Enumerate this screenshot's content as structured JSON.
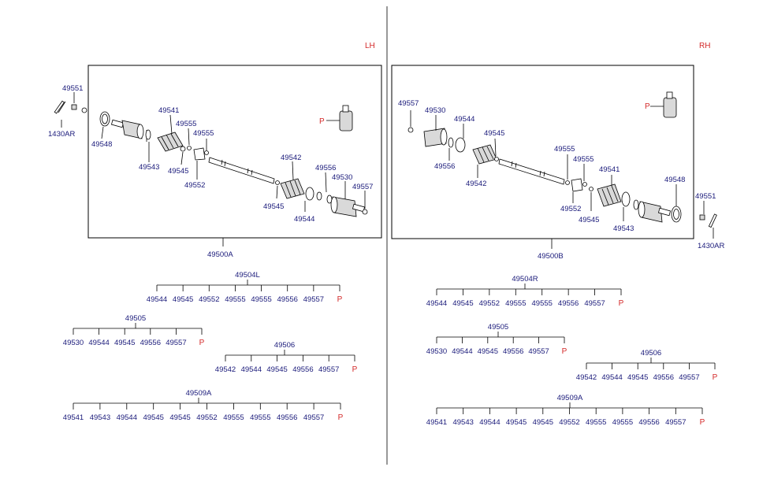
{
  "side_lh": "LH",
  "side_rh": "RH",
  "left": {
    "callouts": {
      "c49551": "49551",
      "c1430ar": "1430AR",
      "c49548": "49548",
      "c49541": "49541",
      "c49555a": "49555",
      "c49555b": "49555",
      "c49543": "49543",
      "c49545a": "49545",
      "c49552": "49552",
      "c49542": "49542",
      "c49556": "49556",
      "c49530": "49530",
      "c49557": "49557",
      "c49545b": "49545",
      "c49544": "49544",
      "p": "P"
    },
    "assembly": "49500A",
    "kits": [
      {
        "name": "49504L",
        "items": [
          "49544",
          "49545",
          "49552",
          "49555",
          "49555",
          "49556",
          "49557",
          "P"
        ]
      },
      {
        "name": "49505",
        "items": [
          "49530",
          "49544",
          "49545",
          "49556",
          "49557",
          "P"
        ]
      },
      {
        "name": "49506",
        "items": [
          "49542",
          "49544",
          "49545",
          "49556",
          "49557",
          "P"
        ]
      },
      {
        "name": "49509A",
        "items": [
          "49541",
          "49543",
          "49544",
          "49545",
          "49545",
          "49552",
          "49555",
          "49555",
          "49556",
          "49557",
          "P"
        ]
      }
    ]
  },
  "right": {
    "callouts": {
      "c49557": "49557",
      "c49530": "49530",
      "c49544": "49544",
      "c49545a": "49545",
      "c49556": "49556",
      "c49542": "49542",
      "c49555a": "49555",
      "c49555b": "49555",
      "c49541": "49541",
      "c49548": "49548",
      "c49552": "49552",
      "c49545b": "49545",
      "c49543": "49543",
      "c49551": "49551",
      "c1430ar": "1430AR",
      "p": "P"
    },
    "assembly": "49500B",
    "kits": [
      {
        "name": "49504R",
        "items": [
          "49544",
          "49545",
          "49552",
          "49555",
          "49555",
          "49556",
          "49557",
          "P"
        ]
      },
      {
        "name": "49505",
        "items": [
          "49530",
          "49544",
          "49545",
          "49556",
          "49557",
          "P"
        ]
      },
      {
        "name": "49506",
        "items": [
          "49542",
          "49544",
          "49545",
          "49556",
          "49557",
          "P"
        ]
      },
      {
        "name": "49509A",
        "items": [
          "49541",
          "49543",
          "49544",
          "49545",
          "49545",
          "49552",
          "49555",
          "49555",
          "49556",
          "49557",
          "P"
        ]
      }
    ]
  }
}
